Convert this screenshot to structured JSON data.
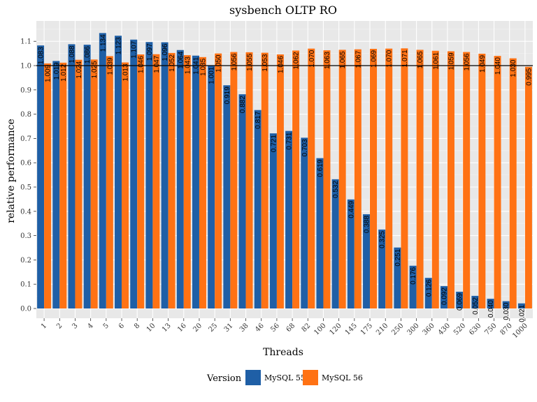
{
  "chart_data": {
    "type": "bar",
    "title": "sysbench OLTP RO",
    "xlabel": "Threads",
    "ylabel": "relative performance",
    "ylim": [
      0,
      1.18
    ],
    "yticks": [
      0.0,
      0.1,
      0.2,
      0.3,
      0.4,
      0.5,
      0.6,
      0.7,
      0.8,
      0.9,
      1.0,
      1.1
    ],
    "ytick_labels": [
      "0.0",
      "0.1",
      "0.2",
      "0.3",
      "0.4",
      "0.5",
      "0.6",
      "0.7",
      "0.8",
      "0.9",
      "1.0",
      "1.1"
    ],
    "reference_line": 1.0,
    "categories": [
      "1",
      "2",
      "3",
      "4",
      "5",
      "6",
      "8",
      "10",
      "13",
      "16",
      "20",
      "25",
      "31",
      "38",
      "46",
      "56",
      "68",
      "82",
      "100",
      "120",
      "145",
      "175",
      "210",
      "250",
      "300",
      "360",
      "430",
      "520",
      "630",
      "750",
      "870",
      "1000"
    ],
    "series": [
      {
        "name": "MySQL 55",
        "color": "#1f5fa6",
        "values": [
          1.083,
          1.019,
          1.088,
          1.086,
          1.134,
          1.123,
          1.107,
          1.097,
          1.096,
          1.064,
          1.041,
          1.001,
          0.919,
          0.882,
          0.817,
          0.721,
          0.731,
          0.703,
          0.619,
          0.532,
          0.449,
          0.388,
          0.325,
          0.251,
          0.176,
          0.126,
          0.092,
          0.069,
          0.052,
          0.04,
          0.03,
          0.021
        ],
        "labels": [
          "1.083",
          "1.019",
          "1.088",
          "1.086",
          "1.134",
          "1.123",
          "1.107",
          "1.097",
          "1.096",
          "1.064",
          "1.041",
          "1.001",
          "0.919",
          "0.882",
          "0.817",
          "0.721",
          "0.731",
          "0.703",
          "0.619",
          "0.532",
          "0.449",
          "0.388",
          "0.325",
          "0.251",
          "0.176",
          "0.126",
          "0.092",
          "0.069",
          "0.052",
          "0.040",
          "0.030",
          "0.021"
        ]
      },
      {
        "name": "MySQL 56",
        "color": "#ff7214",
        "values": [
          1.009,
          1.012,
          1.024,
          1.025,
          1.039,
          1.013,
          1.046,
          1.047,
          1.052,
          1.043,
          1.035,
          1.05,
          1.056,
          1.055,
          1.053,
          1.046,
          1.062,
          1.07,
          1.063,
          1.065,
          1.067,
          1.069,
          1.07,
          1.071,
          1.065,
          1.061,
          1.059,
          1.056,
          1.049,
          1.04,
          1.03,
          0.995
        ],
        "labels": [
          "1.009",
          "1.012",
          "1.024",
          "1.025",
          "1.039",
          "1.013",
          "1.046",
          "1.047",
          "1.052",
          "1.043",
          "1.035",
          "1.050",
          "1.056",
          "1.055",
          "1.053",
          "1.046",
          "1.062",
          "1.070",
          "1.063",
          "1.065",
          "1.067",
          "1.069",
          "1.070",
          "1.071",
          "1.065",
          "1.061",
          "1.059",
          "1.056",
          "1.049",
          "1.040",
          "1.030",
          "0.995"
        ]
      }
    ],
    "legend": {
      "title": "Version",
      "position": "bottom"
    },
    "grid": true,
    "panel_background": "#e8e8e8"
  }
}
